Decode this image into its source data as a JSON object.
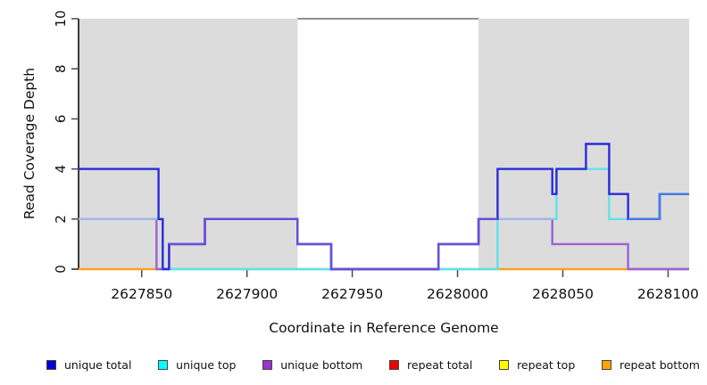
{
  "chart_data": {
    "type": "line",
    "title": "",
    "xlabel": "Coordinate in Reference Genome",
    "ylabel": "Read Coverage Depth",
    "xlim": [
      2627820,
      2628110
    ],
    "ylim": [
      0,
      10
    ],
    "xticks": [
      2627850,
      2627900,
      2627950,
      2628000,
      2628050,
      2628100
    ],
    "yticks": [
      0,
      2,
      4,
      6,
      8,
      10
    ],
    "grid": false,
    "legend_position": "bottom",
    "shaded_regions": [
      {
        "x0": 2627820,
        "x1": 2627924,
        "color": "#dcdcdc"
      },
      {
        "x0": 2628010,
        "x1": 2628110,
        "color": "#dcdcdc"
      }
    ],
    "cap_line": {
      "x0": 2627924,
      "x1": 2628010,
      "y": 10,
      "color": "#8f8f8f"
    },
    "series": [
      {
        "name": "unique bottom",
        "color": "#9a62d8",
        "steps": [
          [
            2627820,
            2
          ],
          [
            2627857,
            2
          ],
          [
            2627857,
            0
          ],
          [
            2627863,
            0
          ],
          [
            2627863,
            1
          ],
          [
            2627880,
            1
          ],
          [
            2627880,
            2
          ],
          [
            2627924,
            2
          ],
          [
            2627924,
            1
          ],
          [
            2627940,
            1
          ],
          [
            2627940,
            0
          ],
          [
            2627991,
            0
          ],
          [
            2627991,
            1
          ],
          [
            2628010,
            1
          ],
          [
            2628010,
            2
          ],
          [
            2628045,
            2
          ],
          [
            2628045,
            1
          ],
          [
            2628081,
            1
          ],
          [
            2628081,
            0
          ],
          [
            2628110,
            0
          ]
        ]
      },
      {
        "name": "unique top",
        "color": "#5fe2ec",
        "steps": [
          [
            2627820,
            2
          ],
          [
            2627860,
            2
          ],
          [
            2627860,
            0
          ],
          [
            2628019,
            0
          ],
          [
            2628019,
            2
          ],
          [
            2628047,
            2
          ],
          [
            2628047,
            4
          ],
          [
            2628072,
            4
          ],
          [
            2628072,
            2
          ],
          [
            2628096,
            2
          ],
          [
            2628096,
            3
          ],
          [
            2628110,
            3
          ]
        ]
      },
      {
        "name": "unique total",
        "color": "#2b2cd9",
        "steps": [
          [
            2627820,
            4
          ],
          [
            2627858,
            4
          ],
          [
            2627858,
            2
          ],
          [
            2627860,
            2
          ],
          [
            2627860,
            0
          ],
          [
            2627863,
            0
          ],
          [
            2627863,
            1
          ],
          [
            2627880,
            1
          ],
          [
            2627880,
            2
          ],
          [
            2627924,
            2
          ],
          [
            2627924,
            1
          ],
          [
            2627940,
            1
          ],
          [
            2627940,
            0
          ],
          [
            2627991,
            0
          ],
          [
            2627991,
            1
          ],
          [
            2628010,
            1
          ],
          [
            2628010,
            2
          ],
          [
            2628019,
            2
          ],
          [
            2628019,
            4
          ],
          [
            2628045,
            4
          ],
          [
            2628045,
            3
          ],
          [
            2628047,
            3
          ],
          [
            2628047,
            4
          ],
          [
            2628061,
            4
          ],
          [
            2628061,
            5
          ],
          [
            2628072,
            5
          ],
          [
            2628072,
            3
          ],
          [
            2628081,
            3
          ],
          [
            2628081,
            2
          ],
          [
            2628096,
            2
          ],
          [
            2628096,
            3
          ],
          [
            2628110,
            3
          ]
        ]
      }
    ],
    "baseline_segments": [
      {
        "name": "repeat-bottom-left",
        "color": "#ffa022",
        "x0": 2627820,
        "x1": 2627858,
        "y": 0
      },
      {
        "name": "baseline-mid-green",
        "color": "#8ecb8e",
        "x0": 2627858,
        "x1": 2628019,
        "y": 0
      },
      {
        "name": "repeat-bottom-right",
        "color": "#ffa022",
        "x0": 2628019,
        "x1": 2628081,
        "y": 0
      },
      {
        "name": "baseline-right-pink",
        "color": "#e0709d",
        "x0": 2628081,
        "x1": 2628110,
        "y": 0
      }
    ],
    "overlap_overlays": [
      {
        "phase": 1,
        "color": "#a9b2e8",
        "steps": [
          [
            2627820,
            2
          ],
          [
            2627857,
            2
          ]
        ]
      },
      {
        "phase": 1,
        "color": "#a9b2e8",
        "steps": [
          [
            2628019,
            2
          ],
          [
            2628045,
            2
          ]
        ]
      },
      {
        "phase": 2,
        "color": "#6a4fd9",
        "steps": [
          [
            2627863,
            1
          ],
          [
            2627880,
            1
          ],
          [
            2627880,
            2
          ],
          [
            2627924,
            2
          ],
          [
            2627924,
            1
          ],
          [
            2627940,
            1
          ],
          [
            2627940,
            0
          ],
          [
            2627991,
            0
          ],
          [
            2627991,
            1
          ],
          [
            2628010,
            1
          ],
          [
            2628010,
            2
          ],
          [
            2628019,
            2
          ]
        ]
      },
      {
        "phase": 2,
        "color": "#447be8",
        "steps": [
          [
            2628081,
            2
          ],
          [
            2628096,
            2
          ],
          [
            2628096,
            3
          ],
          [
            2628110,
            3
          ]
        ]
      }
    ],
    "axis_color": "#000000",
    "tick_color": "#4a4a4a"
  },
  "legend": {
    "items": [
      {
        "label": "unique total",
        "color": "#0000dd"
      },
      {
        "label": "unique top",
        "color": "#00ffff"
      },
      {
        "label": "unique bottom",
        "color": "#9933cc"
      },
      {
        "label": "repeat total",
        "color": "#ee0000"
      },
      {
        "label": "repeat top",
        "color": "#ffff00"
      },
      {
        "label": "repeat bottom",
        "color": "#ffa500"
      }
    ]
  }
}
